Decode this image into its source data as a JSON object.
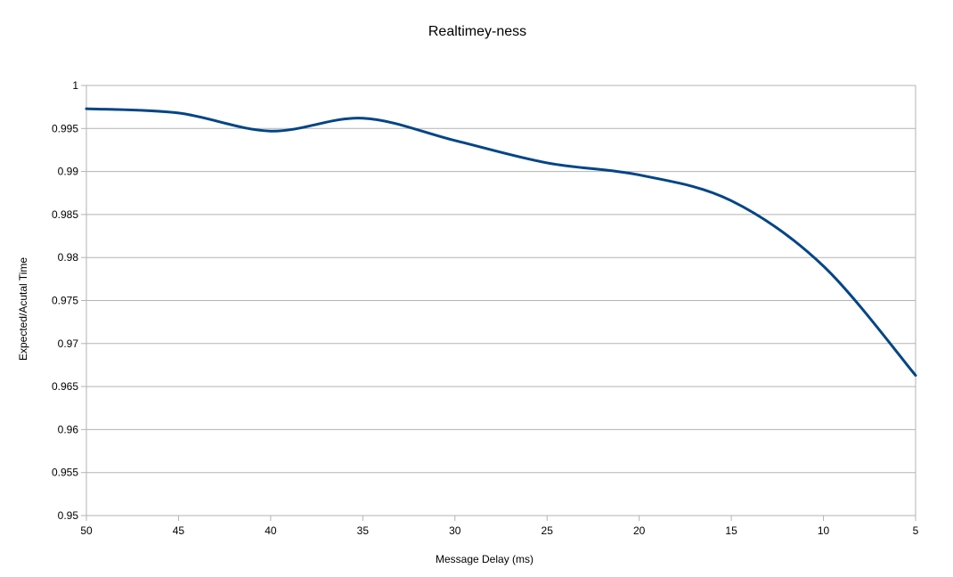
{
  "chart_data": {
    "type": "line",
    "title": "Realtimey-ness",
    "xlabel": "Message Delay (ms)",
    "ylabel": "Expected/Acutal Time",
    "x": [
      50,
      45,
      40,
      35,
      30,
      25,
      20,
      15,
      10,
      5
    ],
    "series": [
      {
        "values": [
          0.9973,
          0.9968,
          0.9947,
          0.9962,
          0.9936,
          0.991,
          0.9896,
          0.9866,
          0.979,
          0.9663
        ]
      }
    ],
    "xlim": [
      50,
      5
    ],
    "ylim": [
      0.95,
      1
    ],
    "x_ticks": [
      "50",
      "45",
      "40",
      "35",
      "30",
      "25",
      "20",
      "15",
      "10",
      "5"
    ],
    "y_ticks": [
      "0.95",
      "0.955",
      "0.96",
      "0.965",
      "0.97",
      "0.975",
      "0.98",
      "0.985",
      "0.99",
      "0.995",
      "1"
    ],
    "x_reversed": true,
    "smooth": true,
    "grid": "horizontal",
    "legend": "none",
    "colors": {
      "series": "#004586",
      "grid": "#b3b3b3"
    }
  }
}
